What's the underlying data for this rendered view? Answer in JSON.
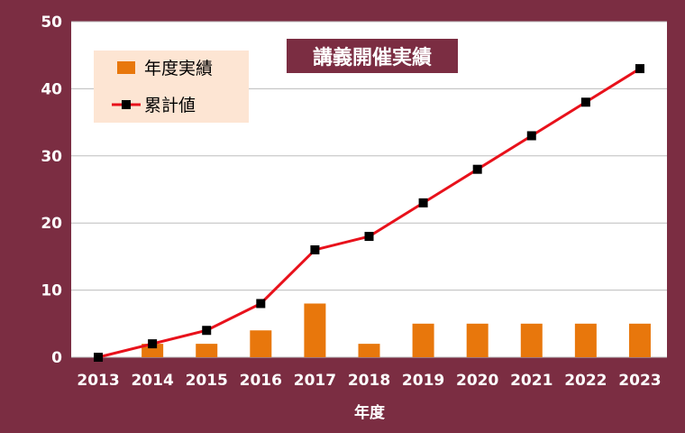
{
  "chart_data": {
    "type": "bar+line",
    "title": "講義開催実績",
    "xlabel": "年度",
    "ylabel": "",
    "ylim": [
      0,
      50
    ],
    "yticks": [
      0,
      10,
      20,
      30,
      40,
      50
    ],
    "categories": [
      "2013",
      "2014",
      "2015",
      "2016",
      "2017",
      "2018",
      "2019",
      "2020",
      "2021",
      "2022",
      "2023"
    ],
    "series": [
      {
        "name": "年度実績",
        "kind": "bar",
        "values": [
          0,
          2,
          2,
          4,
          8,
          2,
          5,
          5,
          5,
          5,
          5
        ]
      },
      {
        "name": "累計値",
        "kind": "line",
        "values": [
          0,
          2,
          4,
          8,
          16,
          18,
          23,
          28,
          33,
          38,
          43
        ]
      }
    ],
    "grid": true,
    "legend": "top-left",
    "colors": {
      "background": "#7b2d42",
      "bar": "#e8770c",
      "line": "#e8111b",
      "marker": "#000000",
      "legend_bg": "#fde5d3",
      "title_bg": "#7b2d42",
      "plot_bg": "#ffffff",
      "grid": "#bdbdbd"
    }
  }
}
